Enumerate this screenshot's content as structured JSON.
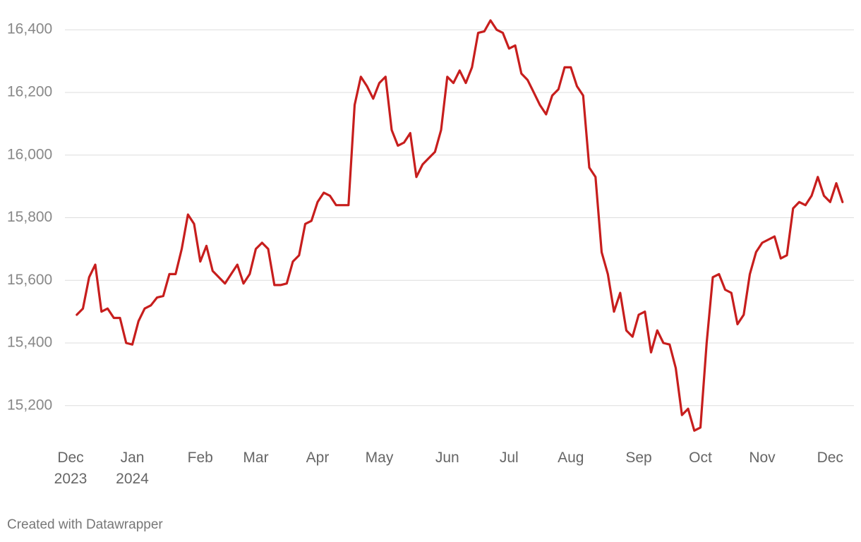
{
  "chart_data": {
    "type": "line",
    "categories": [
      "Dec\n2023",
      null,
      null,
      null,
      null,
      null,
      null,
      null,
      null,
      null,
      "Jan\n2024",
      null,
      null,
      null,
      null,
      null,
      null,
      null,
      null,
      null,
      null,
      "Feb",
      null,
      null,
      null,
      null,
      null,
      null,
      null,
      null,
      "Mar",
      null,
      null,
      null,
      null,
      null,
      null,
      null,
      null,
      null,
      "Apr",
      null,
      null,
      null,
      null,
      null,
      null,
      null,
      null,
      null,
      "May",
      null,
      null,
      null,
      null,
      null,
      null,
      null,
      null,
      null,
      null,
      "Jun",
      null,
      null,
      null,
      null,
      null,
      null,
      null,
      null,
      null,
      "Jul",
      null,
      null,
      null,
      null,
      null,
      null,
      null,
      null,
      null,
      "Aug",
      null,
      null,
      null,
      null,
      null,
      null,
      null,
      null,
      null,
      null,
      "Sep",
      null,
      null,
      null,
      null,
      null,
      null,
      null,
      null,
      null,
      "Oct",
      null,
      null,
      null,
      null,
      null,
      null,
      null,
      null,
      null,
      "Nov",
      null,
      null,
      null,
      null,
      null,
      null,
      null,
      null,
      null,
      null,
      "Dec",
      null,
      null
    ],
    "series": [
      {
        "color": "#c71e1d",
        "values": [
          null,
          15490,
          15510,
          15610,
          15650,
          15500,
          15510,
          15480,
          15480,
          15400,
          15395,
          15470,
          15510,
          15520,
          15545,
          15550,
          15620,
          15620,
          15700,
          15810,
          15780,
          15660,
          15710,
          15630,
          15610,
          15590,
          15620,
          15650,
          15590,
          15620,
          15700,
          15720,
          15700,
          15585,
          15585,
          15590,
          15660,
          15680,
          15780,
          15790,
          15850,
          15880,
          15870,
          15840,
          15840,
          15840,
          16160,
          16250,
          16220,
          16180,
          16230,
          16250,
          16080,
          16030,
          16040,
          16070,
          15930,
          15970,
          15990,
          16010,
          16080,
          16250,
          16230,
          16270,
          16230,
          16280,
          16390,
          16395,
          16430,
          16400,
          16390,
          16340,
          16350,
          16260,
          16240,
          16200,
          16160,
          16130,
          16190,
          16210,
          16280,
          16280,
          16220,
          16190,
          15960,
          15930,
          15690,
          15620,
          15500,
          15560,
          15440,
          15420,
          15490,
          15500,
          15370,
          15440,
          15400,
          15395,
          15320,
          15170,
          15190,
          15120,
          15130,
          15400,
          15610,
          15620,
          15570,
          15560,
          15460,
          15490,
          15620,
          15690,
          15720,
          15730,
          15740,
          15670,
          15680,
          15830,
          15850,
          15840,
          15870,
          15930,
          15870,
          15850,
          15910,
          15850
        ]
      }
    ],
    "ylim": [
      15080,
      16450
    ],
    "yticks": [
      {
        "value": 15200,
        "label": "15,200"
      },
      {
        "value": 15400,
        "label": "15,400"
      },
      {
        "value": 15600,
        "label": "15,600"
      },
      {
        "value": 15800,
        "label": "15,800"
      },
      {
        "value": 16000,
        "label": "16,000"
      },
      {
        "value": 16200,
        "label": "16,200"
      },
      {
        "value": 16400,
        "label": "16,400"
      }
    ],
    "grid": true,
    "credit": "Created with Datawrapper"
  }
}
